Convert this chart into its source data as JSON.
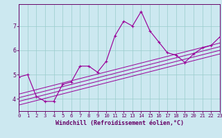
{
  "xlabel": "Windchill (Refroidissement éolien,°C)",
  "bg_color": "#cce8f0",
  "line_color": "#990099",
  "grid_color": "#99cccc",
  "axis_color": "#660066",
  "tick_color": "#660066",
  "x_min": 0,
  "x_max": 23,
  "y_min": 3.5,
  "y_max": 7.9,
  "yticks": [
    4,
    5,
    6,
    7
  ],
  "xticks": [
    0,
    1,
    2,
    3,
    4,
    5,
    6,
    7,
    8,
    9,
    10,
    11,
    12,
    13,
    14,
    15,
    16,
    17,
    18,
    19,
    20,
    21,
    22,
    23
  ],
  "main_line_x": [
    0,
    1,
    2,
    3,
    4,
    5,
    6,
    7,
    8,
    9,
    10,
    11,
    12,
    13,
    14,
    15,
    16,
    17,
    18,
    19,
    20,
    21,
    22,
    23
  ],
  "main_line_y": [
    4.9,
    5.0,
    4.1,
    3.9,
    3.9,
    4.6,
    4.7,
    5.35,
    5.35,
    5.1,
    5.55,
    6.6,
    7.2,
    7.0,
    7.6,
    6.8,
    6.35,
    5.9,
    5.8,
    5.5,
    5.85,
    6.1,
    6.2,
    6.55
  ],
  "line1_y_start": 3.75,
  "line1_y_end": 5.85,
  "line2_y_start": 3.9,
  "line2_y_end": 6.0,
  "line3_y_start": 4.05,
  "line3_y_end": 6.15,
  "line4_y_start": 4.2,
  "line4_y_end": 6.3,
  "xlabel_fontsize": 6,
  "tick_fontsize_x": 5.2,
  "tick_fontsize_y": 6.0,
  "lw_main": 0.85,
  "lw_ref": 0.7,
  "marker_size": 3.0,
  "marker_lw": 0.8
}
